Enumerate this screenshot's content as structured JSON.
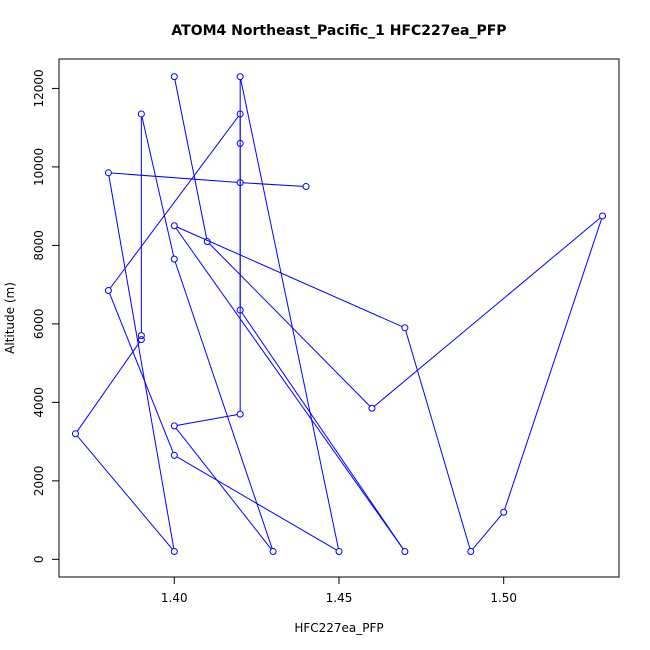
{
  "chart_data": {
    "type": "line",
    "title": "ATOM4 Northeast_Pacific_1 HFC227ea_PFP",
    "xlabel": "HFC227ea_PFP",
    "ylabel": "Altitude (m)",
    "xlim": [
      1.365,
      1.535
    ],
    "ylim": [
      -450,
      12750
    ],
    "x_ticks": [
      1.4,
      1.45,
      1.5
    ],
    "x_tick_labels": [
      "1.40",
      "1.45",
      "1.50"
    ],
    "y_ticks": [
      0,
      2000,
      4000,
      6000,
      8000,
      10000,
      12000
    ],
    "y_tick_labels": [
      "0",
      "2000",
      "4000",
      "6000",
      "8000",
      "10000",
      "12000"
    ],
    "grid": false,
    "marker": "open-circle",
    "color": "#0000ff",
    "series": [
      {
        "x": [
          1.44,
          1.42,
          1.38,
          1.4,
          1.37,
          1.39,
          1.39,
          1.39,
          1.4,
          1.43,
          1.4,
          1.42,
          1.42,
          1.42,
          1.45,
          1.4,
          1.38,
          1.42,
          1.42,
          1.47,
          1.4,
          1.47,
          1.49,
          1.5,
          1.53,
          1.46,
          1.41,
          1.4
        ],
        "y": [
          9500,
          9600,
          9850,
          200,
          3200,
          5600,
          5700,
          11350,
          7650,
          200,
          3400,
          3700,
          10600,
          12300,
          200,
          2650,
          6850,
          11350,
          6350,
          200,
          8500,
          5900,
          200,
          1200,
          8750,
          3850,
          8100,
          12300
        ]
      }
    ]
  }
}
